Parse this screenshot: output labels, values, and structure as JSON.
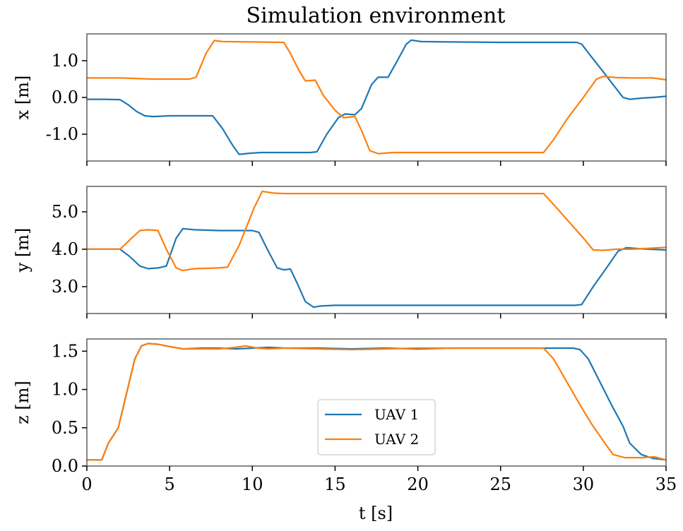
{
  "chart_data": [
    {
      "type": "line",
      "title": "Simulation environment",
      "xlabel": "",
      "ylabel": "x [m]",
      "xlim": [
        0,
        35
      ],
      "ylim": [
        -1.73,
        1.73
      ],
      "yticks": [
        1.0,
        0.0,
        -1.0
      ],
      "ytick_labels": [
        "1.0",
        "0.0",
        "-1.0"
      ],
      "xticks": [
        0,
        5,
        10,
        15,
        20,
        25,
        30,
        35
      ],
      "xtick_labels": [],
      "grid": false,
      "series": [
        {
          "name": "UAV 1",
          "color": "#1f77b4",
          "x": [
            0,
            1,
            2,
            2.5,
            3,
            3.5,
            4,
            5,
            6,
            7.6,
            8.2,
            8.8,
            9.2,
            9.8,
            10.5,
            12,
            13.5,
            13.9,
            14.5,
            15.2,
            15.6,
            16.2,
            16.6,
            17.2,
            17.6,
            18.2,
            18.7,
            19.3,
            19.6,
            20.2,
            22,
            25,
            28,
            29.6,
            29.9,
            30.5,
            31.2,
            31.8,
            32.4,
            32.8,
            33.5,
            34.2,
            35
          ],
          "y": [
            -0.05,
            -0.05,
            -0.06,
            -0.2,
            -0.38,
            -0.5,
            -0.52,
            -0.5,
            -0.5,
            -0.5,
            -0.85,
            -1.3,
            -1.55,
            -1.52,
            -1.5,
            -1.5,
            -1.5,
            -1.48,
            -1.0,
            -0.55,
            -0.45,
            -0.47,
            -0.3,
            0.35,
            0.55,
            0.55,
            0.95,
            1.45,
            1.56,
            1.52,
            1.51,
            1.5,
            1.5,
            1.5,
            1.45,
            1.1,
            0.7,
            0.35,
            0.0,
            -0.05,
            -0.02,
            0.0,
            0.03
          ]
        },
        {
          "name": "UAV 2",
          "color": "#ff7f0e",
          "x": [
            0,
            2,
            4,
            5,
            6.2,
            6.6,
            7.2,
            7.7,
            8.2,
            10,
            11.9,
            12.3,
            12.8,
            13.2,
            13.8,
            14.3,
            15.0,
            15.5,
            16.2,
            16.6,
            17.1,
            17.6,
            18.5,
            22,
            25,
            27.6,
            28.2,
            29,
            30,
            30.8,
            31.2,
            32,
            33,
            34.2,
            35
          ],
          "y": [
            0.53,
            0.53,
            0.5,
            0.5,
            0.5,
            0.55,
            1.2,
            1.55,
            1.52,
            1.51,
            1.5,
            1.2,
            0.75,
            0.45,
            0.47,
            0.05,
            -0.35,
            -0.55,
            -0.52,
            -0.9,
            -1.45,
            -1.53,
            -1.5,
            -1.5,
            -1.5,
            -1.5,
            -1.15,
            -0.6,
            0.0,
            0.5,
            0.57,
            0.54,
            0.53,
            0.53,
            0.48
          ]
        }
      ]
    },
    {
      "type": "line",
      "xlabel": "",
      "ylabel": "y [m]",
      "xlim": [
        0,
        35
      ],
      "ylim": [
        2.28,
        5.68
      ],
      "yticks": [
        5.0,
        4.0,
        3.0
      ],
      "ytick_labels": [
        "5.0",
        "4.0",
        "3.0"
      ],
      "xticks": [
        0,
        5,
        10,
        15,
        20,
        25,
        30,
        35
      ],
      "xtick_labels": [],
      "grid": false,
      "series": [
        {
          "name": "UAV 1",
          "color": "#1f77b4",
          "x": [
            0,
            1,
            2,
            2.6,
            3.2,
            3.7,
            4.3,
            4.8,
            5.4,
            5.8,
            6.5,
            8,
            10,
            10.4,
            10.9,
            11.5,
            11.9,
            12.3,
            12.7,
            13.2,
            13.7,
            14.1,
            15,
            18,
            22,
            26,
            29.5,
            29.9,
            30.6,
            31.4,
            32.1,
            32.6,
            33.5,
            35
          ],
          "y": [
            4.0,
            4.0,
            4.0,
            3.8,
            3.55,
            3.48,
            3.5,
            3.55,
            4.3,
            4.55,
            4.52,
            4.5,
            4.5,
            4.45,
            4.0,
            3.5,
            3.45,
            3.47,
            3.1,
            2.6,
            2.45,
            2.48,
            2.5,
            2.5,
            2.5,
            2.5,
            2.5,
            2.52,
            3.0,
            3.5,
            3.95,
            4.04,
            4.01,
            3.98
          ]
        },
        {
          "name": "UAV 2",
          "color": "#ff7f0e",
          "x": [
            0,
            1,
            2,
            2.6,
            3.2,
            3.7,
            4.3,
            4.8,
            5.4,
            5.8,
            6.5,
            8,
            8.5,
            9.2,
            10.1,
            10.6,
            11.3,
            12,
            15,
            20,
            25,
            27.6,
            28.3,
            29.2,
            30,
            30.6,
            31.2,
            32,
            33,
            35
          ],
          "y": [
            4.0,
            4.0,
            4.0,
            4.25,
            4.5,
            4.52,
            4.5,
            4.0,
            3.5,
            3.43,
            3.48,
            3.5,
            3.52,
            4.1,
            5.1,
            5.55,
            5.5,
            5.49,
            5.49,
            5.49,
            5.49,
            5.49,
            5.15,
            4.7,
            4.3,
            3.98,
            3.97,
            4.0,
            4.0,
            4.05
          ]
        }
      ]
    },
    {
      "type": "line",
      "xlabel": "t [s]",
      "ylabel": "z [m]",
      "xlim": [
        0,
        35
      ],
      "ylim": [
        0.0,
        1.66
      ],
      "yticks": [
        1.5,
        1.0,
        0.5,
        0.0
      ],
      "ytick_labels": [
        "1.5",
        "1.0",
        "0.5",
        "0.0"
      ],
      "xticks": [
        0,
        5,
        10,
        15,
        20,
        25,
        30,
        35
      ],
      "xtick_labels": [
        "0",
        "5",
        "10",
        "15",
        "20",
        "25",
        "30",
        "35"
      ],
      "grid": false,
      "legend": {
        "placement": "lower-center",
        "entries": [
          "UAV 1",
          "UAV 2"
        ]
      },
      "series": [
        {
          "name": "UAV 1",
          "color": "#1f77b4",
          "x": [
            0,
            0.9,
            1.3,
            1.9,
            2.4,
            2.9,
            3.3,
            3.7,
            4.3,
            5.0,
            5.8,
            7,
            8,
            9,
            10,
            11,
            12,
            14,
            16,
            18,
            20,
            22,
            25,
            27,
            29.4,
            29.8,
            30.3,
            31,
            31.7,
            32.4,
            32.8,
            33.5,
            34.2,
            35
          ],
          "y": [
            0.08,
            0.08,
            0.3,
            0.5,
            0.95,
            1.4,
            1.57,
            1.6,
            1.59,
            1.56,
            1.53,
            1.54,
            1.54,
            1.53,
            1.54,
            1.55,
            1.54,
            1.54,
            1.53,
            1.54,
            1.53,
            1.54,
            1.54,
            1.54,
            1.54,
            1.52,
            1.4,
            1.1,
            0.8,
            0.52,
            0.3,
            0.15,
            0.1,
            0.08
          ]
        },
        {
          "name": "UAV 2",
          "color": "#ff7f0e",
          "x": [
            0,
            0.9,
            1.3,
            1.9,
            2.4,
            2.9,
            3.3,
            3.7,
            4.3,
            5.0,
            5.8,
            7,
            8,
            9,
            9.6,
            10.3,
            11,
            12,
            14,
            16,
            18,
            20,
            22,
            25,
            27.6,
            28.2,
            29,
            29.8,
            30.5,
            31.3,
            31.8,
            32.5,
            33.5,
            34.3,
            35
          ],
          "y": [
            0.08,
            0.08,
            0.3,
            0.5,
            0.95,
            1.4,
            1.57,
            1.6,
            1.59,
            1.56,
            1.53,
            1.53,
            1.53,
            1.55,
            1.57,
            1.54,
            1.53,
            1.54,
            1.53,
            1.52,
            1.53,
            1.54,
            1.54,
            1.54,
            1.54,
            1.4,
            1.1,
            0.8,
            0.55,
            0.3,
            0.15,
            0.11,
            0.11,
            0.12,
            0.08
          ]
        }
      ]
    }
  ]
}
